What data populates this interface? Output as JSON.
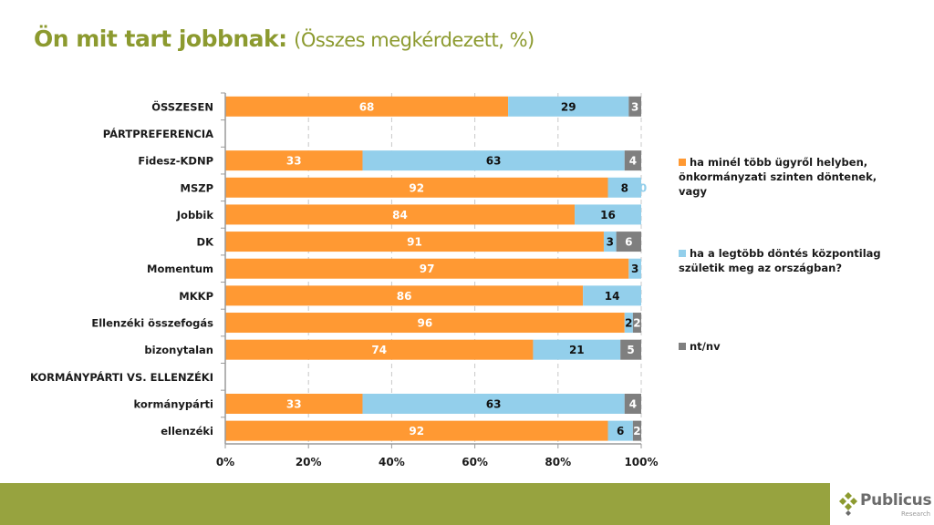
{
  "title": {
    "bold": "Ön mit tart jobbnak:",
    "sub": "(Összes megkérdezett, %)"
  },
  "footer": {
    "brand": "Publicus",
    "brand_sub": "Research",
    "band_color": "#97a33f"
  },
  "chart_data": {
    "type": "bar",
    "orientation": "horizontal",
    "stacked": true,
    "title": "Ön mit tart jobbnak: (Összes megkérdezett, %)",
    "xlabel": "",
    "ylabel": "",
    "xlim": [
      0,
      100
    ],
    "x_ticks": [
      "0%",
      "20%",
      "40%",
      "60%",
      "80%",
      "100%"
    ],
    "grid": "vertical dashed",
    "legend_position": "right",
    "categories": [
      "ÖSSZESEN",
      "PÁRTPREFERENCIA",
      "Fidesz-KDNP",
      "MSZP",
      "Jobbik",
      "DK",
      "Momentum",
      "MKKP",
      "Ellenzéki összefogás",
      "bizonytalan",
      "KORMÁNYPÁRTI VS. ELLENZÉKI",
      "kormánypárti",
      "ellenzéki"
    ],
    "series": [
      {
        "name": "ha minél több ügyről helyben, önkormányzati szinten döntenek, vagy",
        "color": "#ff9933",
        "label_color": "#ffffff",
        "values": [
          68,
          null,
          33,
          92,
          84,
          91,
          97,
          86,
          96,
          74,
          null,
          33,
          92
        ]
      },
      {
        "name": "ha a legtöbb döntés központilag születik meg az országban?",
        "color": "#93cfeb",
        "label_color": "#111111",
        "values": [
          29,
          null,
          63,
          8,
          16,
          3,
          3,
          14,
          2,
          21,
          null,
          63,
          6
        ]
      },
      {
        "name": "nt/nv",
        "color": "#7f7f7f",
        "label_color": "#ffffff",
        "values": [
          3,
          null,
          4,
          0,
          null,
          6,
          null,
          null,
          2,
          5,
          null,
          4,
          2
        ]
      }
    ]
  }
}
